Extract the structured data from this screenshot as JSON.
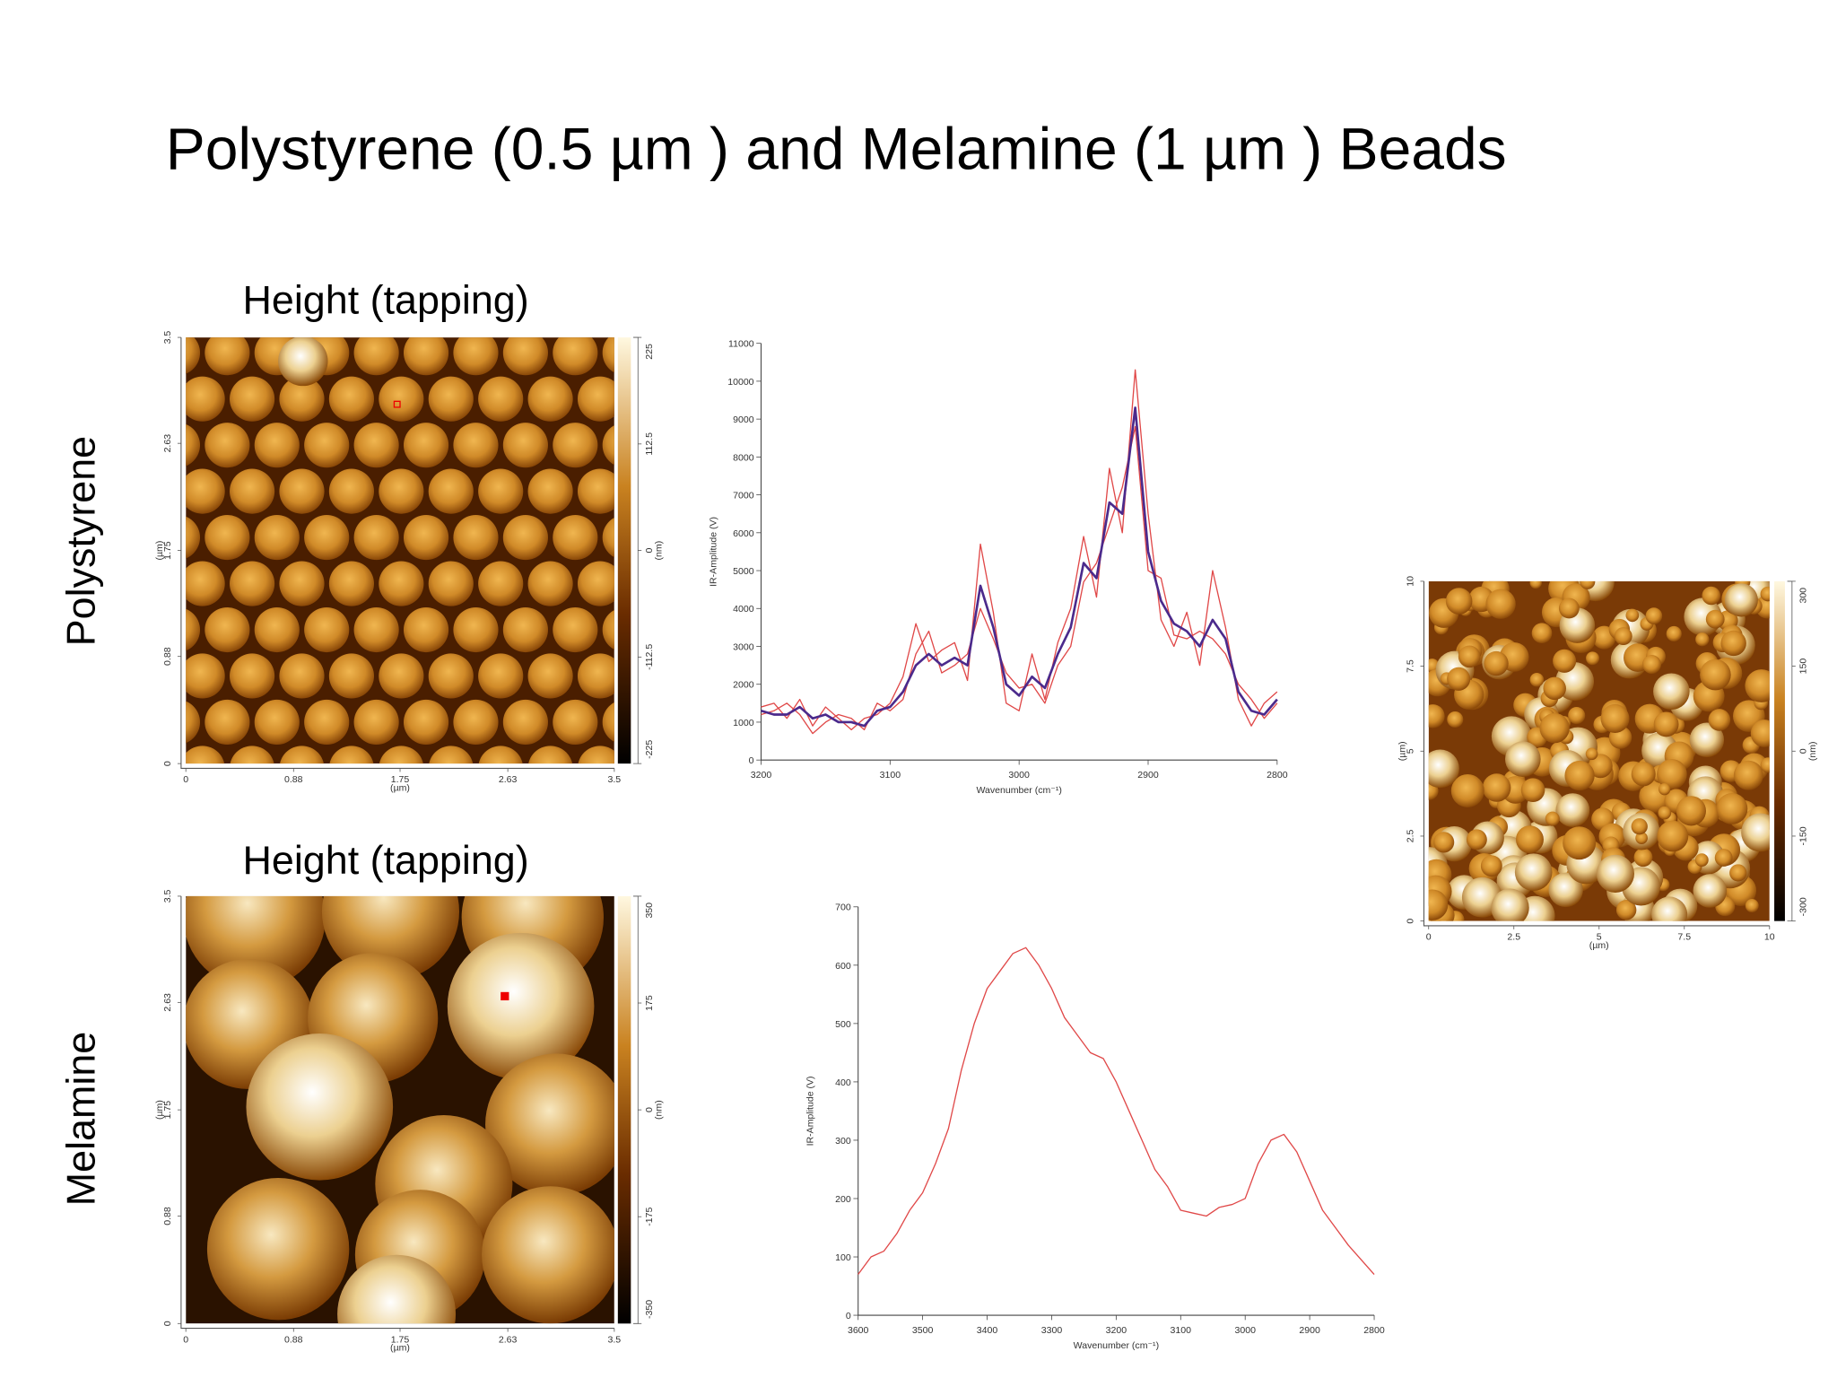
{
  "title": "Polystyrene (0.5 µm )  and Melamine (1 µm ) Beads",
  "row_labels": [
    "Polystyrene",
    "Melamine"
  ],
  "images": [
    {
      "title": "Height (tapping)",
      "xticks": [
        0,
        0.88,
        1.75,
        2.63,
        3.5
      ],
      "yticks": [
        0,
        0.88,
        1.75,
        2.63,
        3.5
      ],
      "xlim": [
        0,
        3.5
      ],
      "ylim": [
        0,
        3.5
      ],
      "x_unit": "(µm)",
      "y_unit": "(µm)",
      "colorbar_ticks": [
        -225,
        -112.5,
        0,
        112.5,
        225
      ],
      "colorbar_lim": [
        -225,
        225
      ],
      "colorbar_unit": "(nm)"
    },
    {
      "title": "Height (tapping)",
      "xticks": [
        0,
        0.88,
        1.75,
        2.63,
        3.5
      ],
      "yticks": [
        0,
        0.88,
        1.75,
        2.63,
        3.5
      ],
      "xlim": [
        0,
        3.5
      ],
      "ylim": [
        0,
        3.5
      ],
      "x_unit": "(µm)",
      "y_unit": "(µm)",
      "colorbar_ticks": [
        -350,
        -175,
        0,
        175,
        350
      ],
      "colorbar_lim": [
        -350,
        350
      ],
      "colorbar_unit": "(nm)"
    },
    {
      "xticks": [
        0,
        2.5,
        5,
        7.5,
        10
      ],
      "yticks": [
        0,
        2.5,
        5,
        7.5,
        10
      ],
      "xlim": [
        0,
        10
      ],
      "ylim": [
        0,
        10
      ],
      "x_unit": "(µm)",
      "y_unit": "(µm)",
      "colorbar_ticks": [
        -300,
        -150,
        0,
        150,
        300
      ],
      "colorbar_lim": [
        -300,
        300
      ],
      "colorbar_unit": "(nm)"
    }
  ],
  "chart_data": [
    {
      "type": "line",
      "xlabel": "Wavenumber (cm⁻¹)",
      "ylabel": "IR-Amplitude (V)",
      "x": [
        3200,
        3190,
        3180,
        3170,
        3160,
        3150,
        3140,
        3130,
        3120,
        3110,
        3100,
        3090,
        3080,
        3070,
        3060,
        3050,
        3040,
        3030,
        3020,
        3010,
        3000,
        2990,
        2980,
        2970,
        2960,
        2950,
        2940,
        2930,
        2920,
        2910,
        2900,
        2890,
        2880,
        2870,
        2860,
        2850,
        2840,
        2830,
        2820,
        2810,
        2800
      ],
      "xlim": [
        3200,
        2800
      ],
      "xticks": [
        3200,
        3100,
        3000,
        2900,
        2800
      ],
      "ylim": [
        0,
        11000
      ],
      "yticks": [
        0,
        1000,
        2000,
        3000,
        4000,
        5000,
        6000,
        7000,
        8000,
        9000,
        10000,
        11000
      ],
      "series": [
        {
          "color": "#e04848",
          "values": [
            1400,
            1500,
            1100,
            1600,
            900,
            1400,
            1100,
            800,
            1100,
            1200,
            1500,
            2200,
            3600,
            2600,
            2900,
            3100,
            2100,
            5700,
            3900,
            1500,
            1300,
            2800,
            1600,
            3100,
            4000,
            5900,
            4300,
            7700,
            6000,
            10300,
            6500,
            3700,
            3000,
            3900,
            2500,
            5000,
            3500,
            1600,
            900,
            1500,
            1800
          ]
        },
        {
          "color": "#e04848",
          "values": [
            1200,
            1300,
            1500,
            1200,
            700,
            1000,
            1200,
            1100,
            800,
            1500,
            1300,
            1600,
            2800,
            3400,
            2300,
            2500,
            2800,
            4000,
            3200,
            2300,
            1900,
            2000,
            1500,
            2500,
            3000,
            4700,
            5200,
            6200,
            7200,
            8800,
            5000,
            4800,
            3300,
            3200,
            3400,
            3200,
            2800,
            2000,
            1600,
            1100,
            1500
          ]
        },
        {
          "color": "#4b2a8c",
          "values": [
            1300,
            1200,
            1200,
            1400,
            1100,
            1200,
            1000,
            1000,
            900,
            1300,
            1400,
            1800,
            2500,
            2800,
            2500,
            2700,
            2500,
            4600,
            3500,
            2000,
            1700,
            2200,
            1900,
            2800,
            3500,
            5200,
            4800,
            6800,
            6500,
            9300,
            5500,
            4200,
            3600,
            3400,
            3000,
            3700,
            3200,
            1800,
            1300,
            1200,
            1600
          ]
        }
      ]
    },
    {
      "type": "line",
      "xlabel": "Wavenumber (cm⁻¹)",
      "ylabel": "IR-Amplitude (V)",
      "x": [
        3600,
        3580,
        3560,
        3540,
        3520,
        3500,
        3480,
        3460,
        3440,
        3420,
        3400,
        3380,
        3360,
        3340,
        3320,
        3300,
        3280,
        3260,
        3240,
        3220,
        3200,
        3180,
        3160,
        3140,
        3120,
        3100,
        3080,
        3060,
        3040,
        3020,
        3000,
        2980,
        2960,
        2940,
        2920,
        2900,
        2880,
        2860,
        2840,
        2820,
        2800
      ],
      "xlim": [
        3600,
        2800
      ],
      "xticks": [
        3600,
        3500,
        3400,
        3300,
        3200,
        3100,
        3000,
        2900,
        2800
      ],
      "ylim": [
        0,
        700
      ],
      "yticks": [
        0,
        100,
        200,
        300,
        400,
        500,
        600,
        700
      ],
      "series": [
        {
          "color": "#e04848",
          "values": [
            70,
            100,
            110,
            140,
            180,
            210,
            260,
            320,
            420,
            500,
            560,
            590,
            620,
            630,
            600,
            560,
            510,
            480,
            450,
            440,
            400,
            350,
            300,
            250,
            220,
            180,
            175,
            170,
            185,
            190,
            200,
            260,
            300,
            310,
            280,
            230,
            180,
            150,
            120,
            95,
            70
          ]
        }
      ]
    }
  ]
}
